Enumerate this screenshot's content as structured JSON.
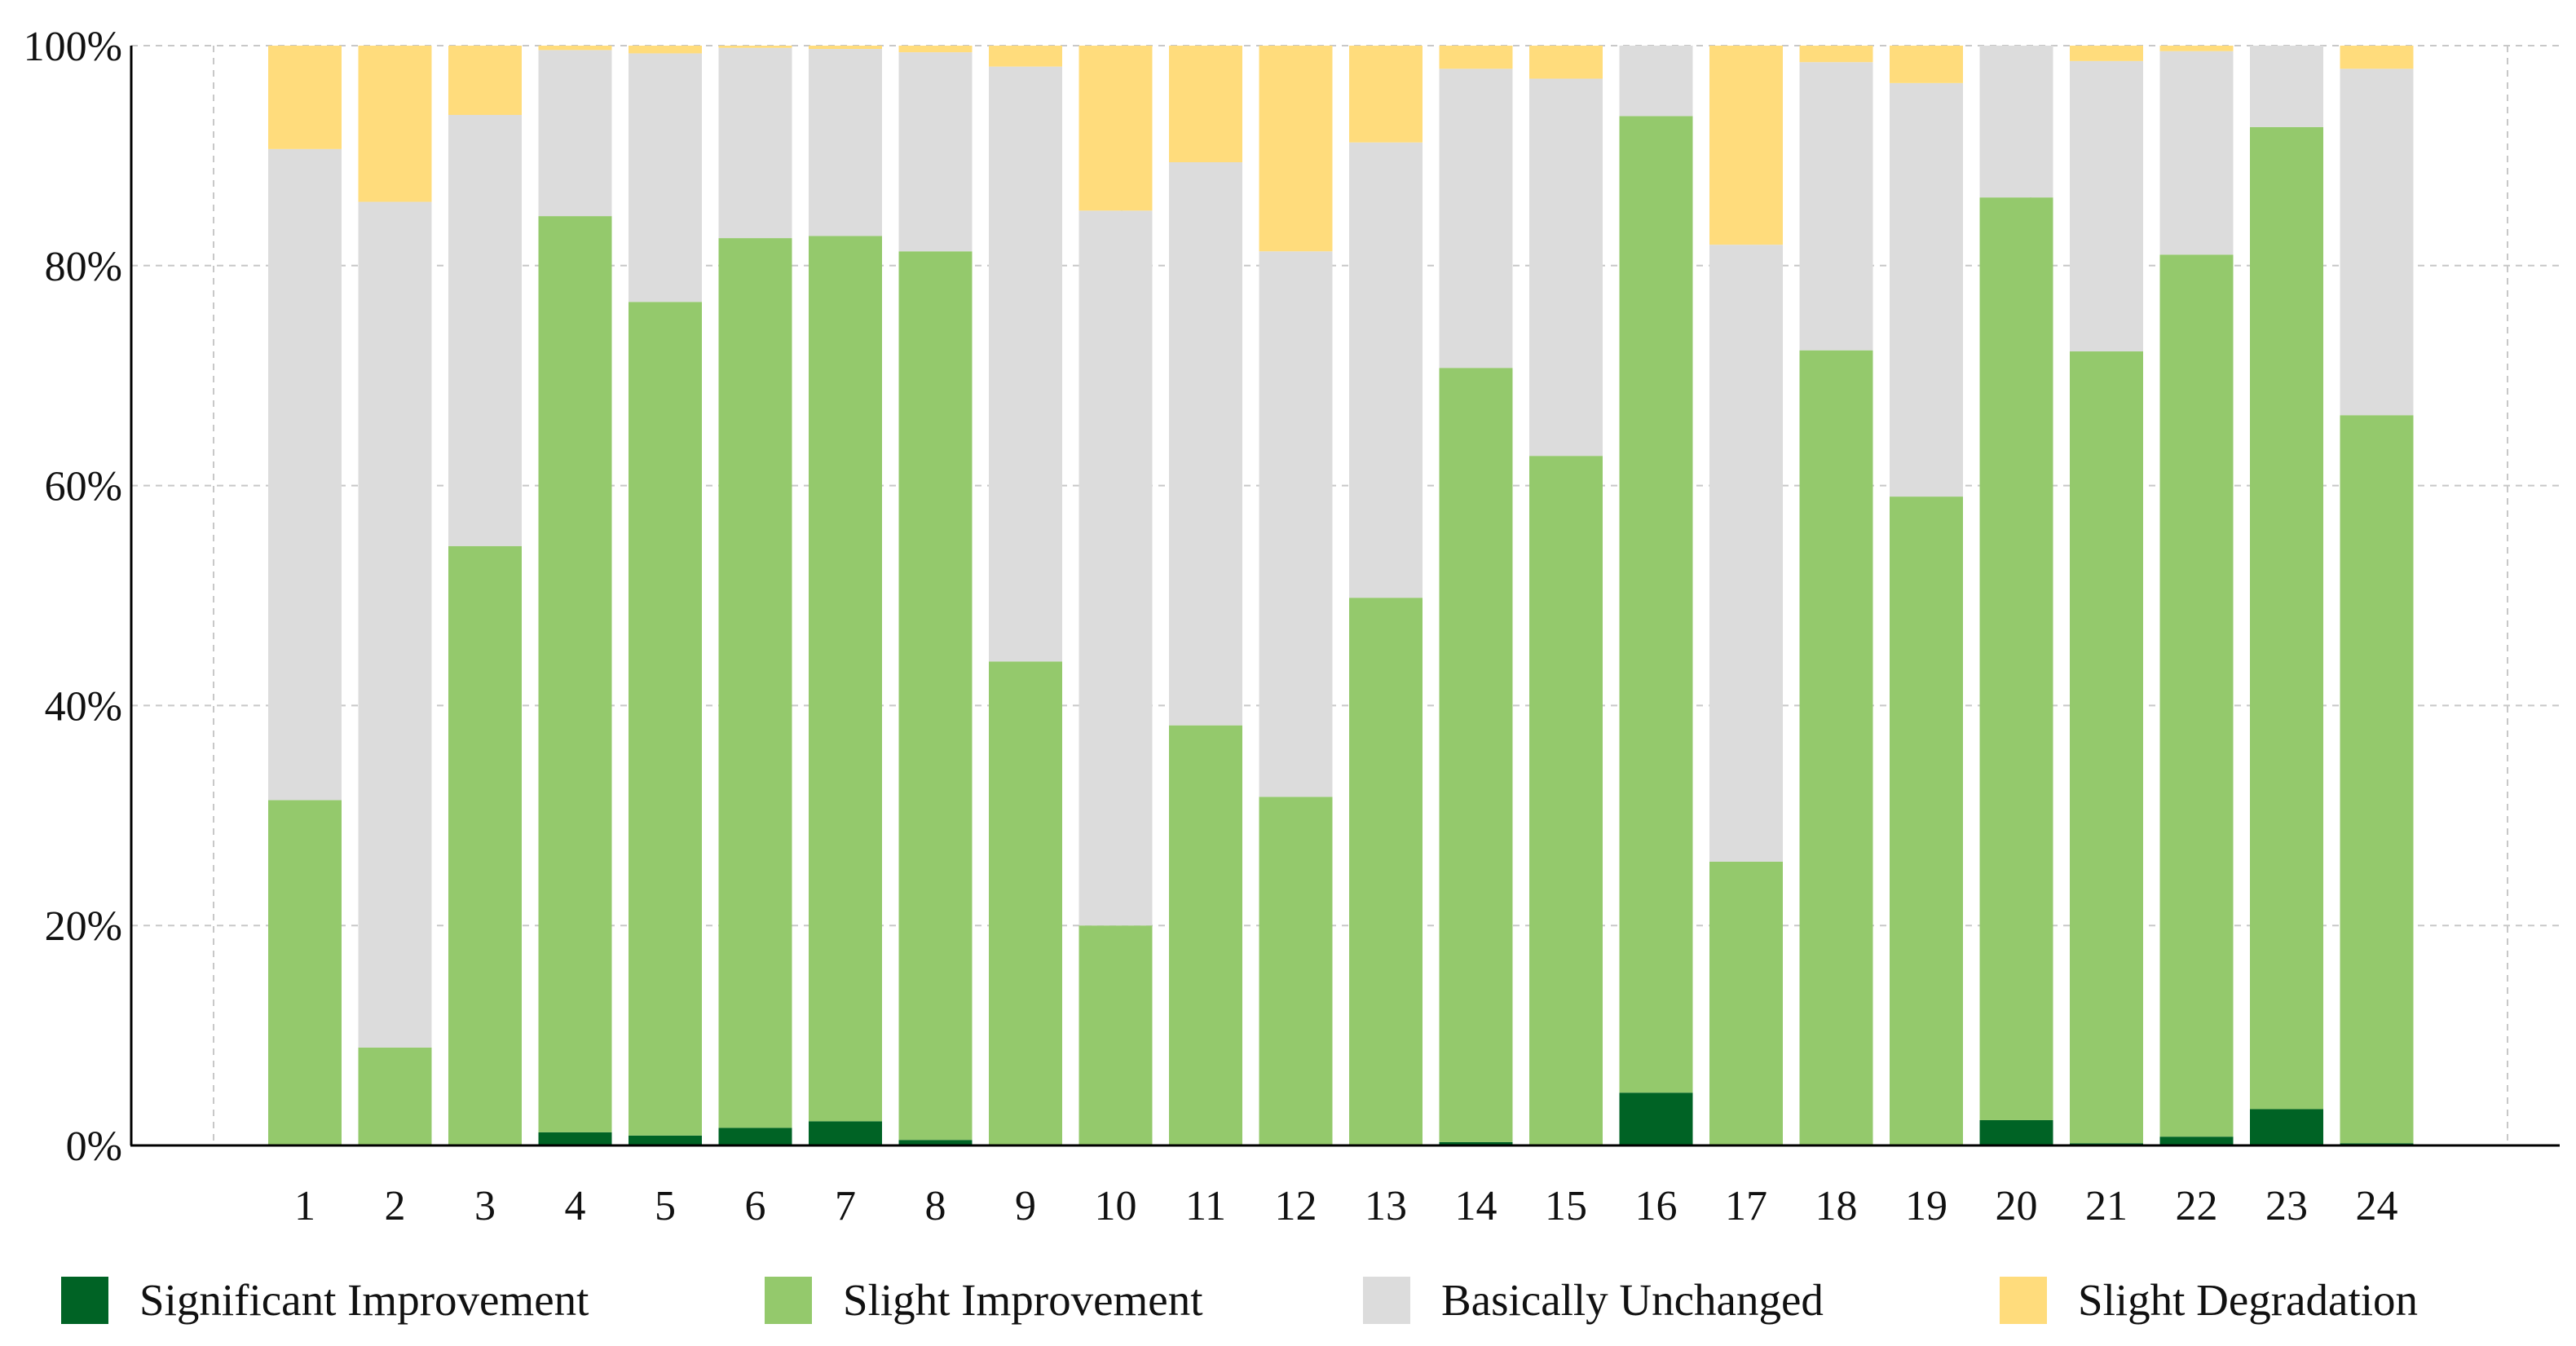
{
  "chart_data": {
    "type": "bar",
    "stacked": true,
    "normalized": true,
    "title": "",
    "xlabel": "",
    "ylabel": "",
    "ylim": [
      0,
      100
    ],
    "y_ticks": [
      "0%",
      "20%",
      "40%",
      "60%",
      "80%",
      "100%"
    ],
    "grid": true,
    "legend_position": "bottom",
    "categories": [
      "1",
      "2",
      "3",
      "4",
      "5",
      "6",
      "7",
      "8",
      "9",
      "10",
      "11",
      "12",
      "13",
      "14",
      "15",
      "16",
      "17",
      "18",
      "19",
      "20",
      "21",
      "22",
      "23",
      "24"
    ],
    "series": [
      {
        "name": "Significant Improvement",
        "color": "#006325",
        "values": [
          0,
          0,
          0,
          1.2,
          0.9,
          1.6,
          2.2,
          0.5,
          0,
          0,
          0,
          0,
          0,
          0.3,
          0,
          4.8,
          0,
          0,
          0,
          2.3,
          0.2,
          0.8,
          3.3,
          0.2
        ]
      },
      {
        "name": "Slight Improvement",
        "color": "#94c96c",
        "values": [
          31.4,
          8.9,
          54.5,
          83.3,
          75.8,
          80.9,
          80.5,
          80.8,
          44.0,
          20.0,
          38.2,
          31.7,
          49.8,
          70.4,
          62.7,
          88.8,
          25.8,
          72.3,
          59.0,
          83.9,
          72.0,
          80.2,
          89.3,
          66.2
        ]
      },
      {
        "name": "Basically Unchanged",
        "color": "#dcdcdc",
        "values": [
          59.2,
          76.9,
          39.2,
          15.1,
          22.6,
          17.3,
          17.0,
          18.1,
          54.1,
          65.0,
          51.2,
          49.6,
          41.4,
          27.2,
          34.3,
          6.4,
          56.1,
          26.2,
          37.6,
          13.8,
          26.4,
          18.5,
          7.4,
          31.5
        ]
      },
      {
        "name": "Slight Degradation",
        "color": "#ffdc7c",
        "values": [
          9.4,
          14.2,
          6.3,
          0.4,
          0.7,
          0.2,
          0.3,
          0.6,
          1.9,
          15.0,
          10.6,
          18.7,
          8.8,
          2.1,
          3.0,
          0,
          18.1,
          1.5,
          3.4,
          0,
          1.4,
          0.5,
          0,
          2.1
        ]
      }
    ]
  }
}
